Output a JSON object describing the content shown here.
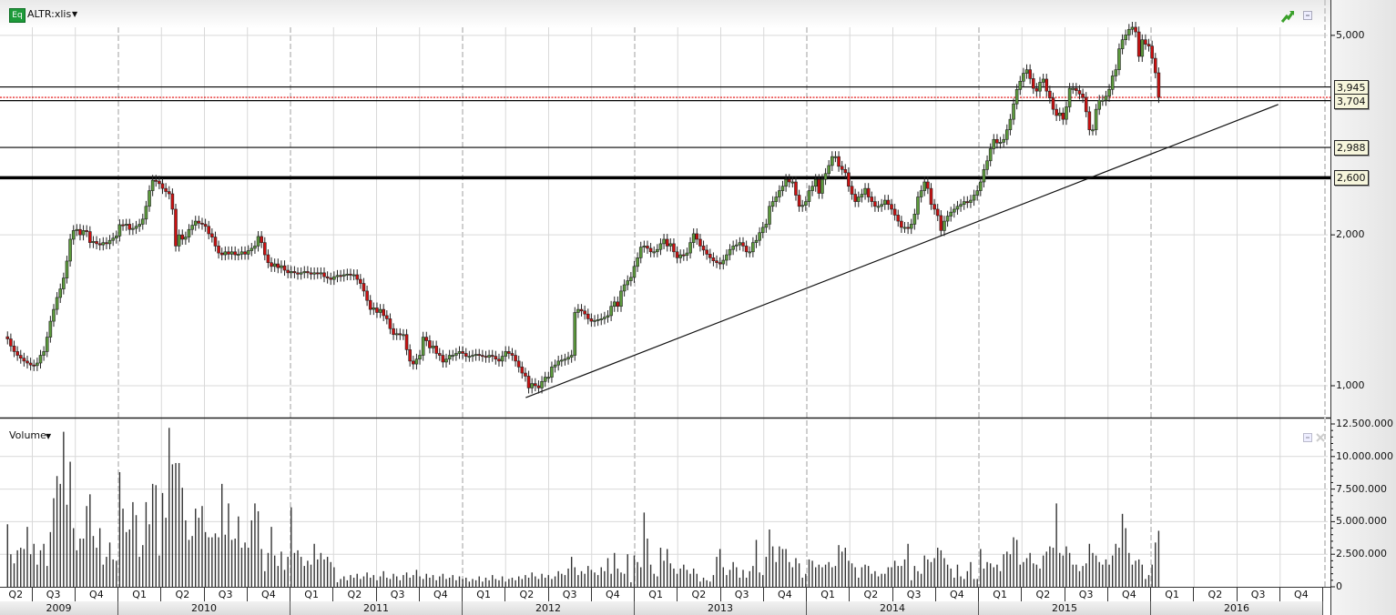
{
  "header": {
    "badge": "Eq",
    "symbol": "ALTR:xlis"
  },
  "volume_pane": {
    "label": "Volume"
  },
  "colors": {
    "up": "#5c9a3c",
    "down": "#cc1111",
    "last_price_line": "#e00000",
    "grid": "#d9d9d9"
  },
  "icons": {
    "top_right": [
      "trend-up-icon",
      "restore-window-icon"
    ],
    "volume_pane": [
      "restore-window-icon",
      "close-icon"
    ]
  },
  "chart_data": [
    {
      "type": "candlestick",
      "scale": "log",
      "interval": "weekly",
      "start_date": "2009-05-11",
      "ylim": [
        880,
        5600
      ],
      "y_ticks": [
        {
          "value": 1000,
          "label": "1,000"
        },
        {
          "value": 2000,
          "label": "2,000"
        },
        {
          "value": 5000,
          "label": "5,000"
        }
      ],
      "levels": [
        {
          "value": 3945,
          "label": "3,945",
          "style": "solid"
        },
        {
          "value": 3704,
          "label": "3,704",
          "style": "solid"
        },
        {
          "value": 2988,
          "label": "2,988",
          "style": "solid"
        },
        {
          "value": 2600,
          "label": "2,600",
          "style": "thick"
        }
      ],
      "last_price_line": 3760,
      "trendline": {
        "start": {
          "date": "2012-05-14",
          "value": 947
        },
        "end": {
          "date": "2016-09-27",
          "value": 3640
        }
      },
      "closes": [
        1240,
        1200,
        1170,
        1150,
        1135,
        1120,
        1110,
        1100,
        1097,
        1110,
        1150,
        1170,
        1250,
        1345,
        1420,
        1500,
        1560,
        1640,
        1773,
        1960,
        2040,
        2050,
        2000,
        2040,
        2030,
        1930,
        1940,
        1920,
        1910,
        1930,
        1920,
        1950,
        1970,
        1990,
        2095,
        2090,
        2100,
        2050,
        2060,
        2080,
        2100,
        2150,
        2280,
        2450,
        2570,
        2560,
        2530,
        2475,
        2440,
        2415,
        2250,
        1900,
        2000,
        1960,
        1980,
        2050,
        2090,
        2130,
        2110,
        2100,
        2080,
        2010,
        1980,
        1900,
        1840,
        1825,
        1850,
        1830,
        1850,
        1825,
        1830,
        1850,
        1830,
        1860,
        1880,
        1900,
        1985,
        1930,
        1825,
        1760,
        1730,
        1750,
        1720,
        1735,
        1700,
        1680,
        1690,
        1680,
        1670,
        1680,
        1690,
        1680,
        1670,
        1680,
        1675,
        1680,
        1650,
        1640,
        1630,
        1650,
        1660,
        1655,
        1665,
        1670,
        1665,
        1665,
        1630,
        1600,
        1545,
        1480,
        1420,
        1430,
        1400,
        1420,
        1380,
        1360,
        1300,
        1265,
        1270,
        1265,
        1265,
        1180,
        1120,
        1105,
        1130,
        1150,
        1250,
        1230,
        1190,
        1200,
        1160,
        1150,
        1115,
        1130,
        1150,
        1150,
        1160,
        1170,
        1160,
        1145,
        1145,
        1150,
        1155,
        1150,
        1145,
        1140,
        1150,
        1145,
        1130,
        1120,
        1145,
        1170,
        1160,
        1150,
        1120,
        1090,
        1060,
        1045,
        990,
        1010,
        1000,
        990,
        1020,
        1040,
        1040,
        1090,
        1100,
        1120,
        1125,
        1130,
        1140,
        1150,
        1400,
        1420,
        1410,
        1390,
        1360,
        1345,
        1350,
        1355,
        1360,
        1370,
        1380,
        1440,
        1470,
        1440,
        1545,
        1590,
        1620,
        1645,
        1730,
        1800,
        1890,
        1900,
        1880,
        1850,
        1850,
        1870,
        1920,
        1960,
        1900,
        1920,
        1850,
        1800,
        1825,
        1820,
        1840,
        1930,
        2010,
        1960,
        1900,
        1865,
        1830,
        1800,
        1775,
        1760,
        1750,
        1780,
        1825,
        1870,
        1900,
        1910,
        1930,
        1900,
        1850,
        1850,
        1930,
        1950,
        2020,
        2070,
        2100,
        2280,
        2330,
        2380,
        2450,
        2500,
        2580,
        2550,
        2550,
        2400,
        2280,
        2290,
        2330,
        2450,
        2500,
        2580,
        2420,
        2580,
        2650,
        2750,
        2865,
        2865,
        2740,
        2700,
        2660,
        2500,
        2410,
        2330,
        2380,
        2410,
        2475,
        2380,
        2330,
        2280,
        2280,
        2300,
        2345,
        2300,
        2250,
        2190,
        2130,
        2070,
        2070,
        2060,
        2100,
        2200,
        2380,
        2450,
        2550,
        2475,
        2300,
        2250,
        2185,
        2040,
        2130,
        2180,
        2220,
        2250,
        2280,
        2300,
        2330,
        2320,
        2345,
        2400,
        2450,
        2550,
        2700,
        2810,
        2970,
        3100,
        3050,
        3060,
        3100,
        3240,
        3400,
        3650,
        3900,
        4050,
        4200,
        4270,
        4100,
        3920,
        3870,
        4030,
        4090,
        3870,
        3750,
        3560,
        3460,
        3500,
        3400,
        3600,
        3920,
        3920,
        3880,
        3820,
        3760,
        3520,
        3240,
        3240,
        3560,
        3710,
        3710,
        3780,
        3900,
        4150,
        4270,
        4700,
        4900,
        5010,
        5140,
        5190,
        5080,
        4540,
        4900,
        4800,
        4760,
        4500,
        4210,
        3760
      ]
    },
    {
      "type": "bar",
      "name": "Volume",
      "interval": "weekly",
      "start_date": "2009-05-11",
      "ylim": [
        0,
        12500000
      ],
      "y_ticks": [
        {
          "value": 0,
          "label": "0"
        },
        {
          "value": 2500000,
          "label": "2.500.000"
        },
        {
          "value": 5000000,
          "label": "5.000.000"
        },
        {
          "value": 7500000,
          "label": "7.500.000"
        },
        {
          "value": 10000000,
          "label": "10.000.000"
        },
        {
          "value": 12500000,
          "label": "12.500.000"
        }
      ],
      "values_millions": [
        4.8,
        2.5,
        1.8,
        2.8,
        3.0,
        2.9,
        4.6,
        2.5,
        3.3,
        1.7,
        2.8,
        3.3,
        1.6,
        4.2,
        6.8,
        8.5,
        7.9,
        11.9,
        6.3,
        9.6,
        4.5,
        2.8,
        3.7,
        3.7,
        6.2,
        7.1,
        3.9,
        3.0,
        4.5,
        1.7,
        2.3,
        3.4,
        2.1,
        2.0,
        8.8,
        6.0,
        4.2,
        4.4,
        6.5,
        5.5,
        2.3,
        3.2,
        6.5,
        4.8,
        7.9,
        7.8,
        2.4,
        7.2,
        5.3,
        12.2,
        9.4,
        9.5,
        9.5,
        7.6,
        5.1,
        3.6,
        3.9,
        6.0,
        5.3,
        6.2,
        4.2,
        3.8,
        3.8,
        4.1,
        3.8,
        7.9,
        4.0,
        6.4,
        3.6,
        3.7,
        5.4,
        3.0,
        3.4,
        3.0,
        5.1,
        6.4,
        5.8,
        2.9,
        1.2,
        2.6,
        4.6,
        2.4,
        1.6,
        2.7,
        1.3,
        2.3,
        6.1,
        2.6,
        2.8,
        2.3,
        1.6,
        2.0,
        1.7,
        3.3,
        2.1,
        2.6,
        2.1,
        2.3,
        1.9,
        1.5,
        0.35,
        0.6,
        0.8,
        0.5,
        0.9,
        0.7,
        1.0,
        0.6,
        0.8,
        1.1,
        0.7,
        0.9,
        0.5,
        0.8,
        1.2,
        0.7,
        0.6,
        1.0,
        0.8,
        0.5,
        0.9,
        1.1,
        0.7,
        0.9,
        1.3,
        0.8,
        0.6,
        1.0,
        0.7,
        0.9,
        0.5,
        0.8,
        1.0,
        0.6,
        0.7,
        0.9,
        0.5,
        0.8,
        0.6,
        0.7,
        0.4,
        0.6,
        0.5,
        0.8,
        0.4,
        0.7,
        0.5,
        0.9,
        0.6,
        0.5,
        0.8,
        0.4,
        0.6,
        0.7,
        0.5,
        0.8,
        0.6,
        0.9,
        0.7,
        1.1,
        0.8,
        0.6,
        1.0,
        0.7,
        0.9,
        0.6,
        0.8,
        1.2,
        1.0,
        0.9,
        1.4,
        2.3,
        1.5,
        0.9,
        1.2,
        1.0,
        1.6,
        1.3,
        1.1,
        0.9,
        1.5,
        1.2,
        2.2,
        1.0,
        2.6,
        1.4,
        1.1,
        1.0,
        2.5,
        0.35,
        2.4,
        1.9,
        1.5,
        5.7,
        3.7,
        1.7,
        1.0,
        0.8,
        3.0,
        2.0,
        2.9,
        1.8,
        1.4,
        1.0,
        1.4,
        1.7,
        1.3,
        1.0,
        1.4,
        1.0,
        0.4,
        0.7,
        0.5,
        0.4,
        0.9,
        2.3,
        2.9,
        1.5,
        0.9,
        1.3,
        1.9,
        1.5,
        0.7,
        1.3,
        0.7,
        1.2,
        1.6,
        3.6,
        1.1,
        0.9,
        2.3,
        4.4,
        3.1,
        1.9,
        3.1,
        2.9,
        2.9,
        1.9,
        1.5,
        2.2,
        1.8,
        0.7,
        1.0,
        2.1,
        2.0,
        1.5,
        1.7,
        1.5,
        1.7,
        1.9,
        1.5,
        1.6,
        3.2,
        2.7,
        3.0,
        2.0,
        1.8,
        1.5,
        0.7,
        1.5,
        1.7,
        1.6,
        1.0,
        1.2,
        0.8,
        1.0,
        1.0,
        1.5,
        1.5,
        2.0,
        1.6,
        1.6,
        2.1,
        3.3,
        0.5,
        1.6,
        1.2,
        1.0,
        2.4,
        2.1,
        1.9,
        2.2,
        3.0,
        2.8,
        2.2,
        1.7,
        1.4,
        0.7,
        1.7,
        0.8,
        0.6,
        1.2,
        1.9,
        0.6,
        0.6,
        2.9,
        1.4,
        1.9,
        1.8,
        1.5,
        1.7,
        1.2,
        2.5,
        2.7,
        2.5,
        3.8,
        3.6,
        1.7,
        1.9,
        2.2,
        2.6,
        1.8,
        1.7,
        1.4,
        2.4,
        2.7,
        3.1,
        3.0,
        6.4,
        2.6,
        2.4,
        3.1,
        2.6,
        1.7,
        1.7,
        1.2,
        1.6,
        1.8,
        3.3,
        2.6,
        2.4,
        1.9,
        1.7,
        2.1,
        1.7,
        2.4,
        3.3,
        3.0,
        5.6,
        4.5,
        2.6,
        1.7,
        2.0,
        2.1,
        1.7,
        0.6,
        0.9,
        1.7,
        3.4,
        4.3
      ]
    }
  ],
  "time_axis": {
    "years": [
      {
        "label": "2009",
        "quarters": [
          "Q2",
          "Q3",
          "Q4"
        ]
      },
      {
        "label": "2010",
        "quarters": [
          "Q1",
          "Q2",
          "Q3",
          "Q4"
        ]
      },
      {
        "label": "2011",
        "quarters": [
          "Q1",
          "Q2",
          "Q3",
          "Q4"
        ]
      },
      {
        "label": "2012",
        "quarters": [
          "Q1",
          "Q2",
          "Q3",
          "Q4"
        ]
      },
      {
        "label": "2013",
        "quarters": [
          "Q1",
          "Q2",
          "Q3",
          "Q4"
        ]
      },
      {
        "label": "2014",
        "quarters": [
          "Q1",
          "Q2",
          "Q3",
          "Q4"
        ]
      },
      {
        "label": "2015",
        "quarters": [
          "Q1",
          "Q2",
          "Q3",
          "Q4"
        ]
      },
      {
        "label": "2016",
        "quarters": [
          "Q1",
          "Q2",
          "Q3",
          "Q4"
        ]
      }
    ]
  }
}
